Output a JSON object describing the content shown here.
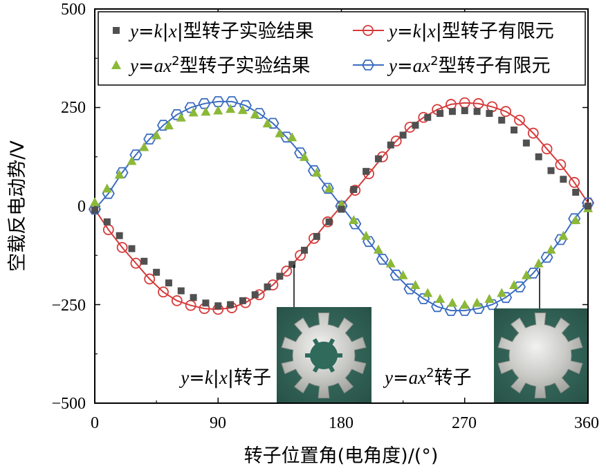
{
  "chart_data": {
    "type": "scatter",
    "ylabel": "空载反电动势/V",
    "xlabel": "转子位置角(电角度)/(°)",
    "xlim": [
      0,
      360
    ],
    "ylim": [
      -500,
      500
    ],
    "xticks": [
      "0",
      "90",
      "180",
      "270",
      "360"
    ],
    "yticks": [
      "500",
      "250",
      "0",
      "−250",
      "−500"
    ],
    "grid": false,
    "legend_position": "top",
    "series": [
      {
        "name": "y=k|x|型转子实验结果",
        "name_parts": [
          "y",
          "=",
          "k",
          "|",
          "x",
          "|型转子实验结果"
        ],
        "marker": "square",
        "color": "#505050",
        "x": [
          0,
          9,
          18,
          27,
          36,
          45,
          54,
          63,
          72,
          81,
          90,
          99,
          108,
          117,
          126,
          135,
          144,
          153,
          162,
          171,
          180,
          189,
          198,
          207,
          216,
          225,
          234,
          243,
          252,
          261,
          270,
          279,
          288,
          297,
          306,
          315,
          324,
          333,
          342,
          351,
          360
        ],
        "y": [
          -10,
          -40,
          -75,
          -108,
          -140,
          -168,
          -195,
          -215,
          -232,
          -246,
          -253,
          -250,
          -240,
          -225,
          -205,
          -178,
          -148,
          -112,
          -77,
          -40,
          -8,
          42,
          88,
          120,
          155,
          180,
          205,
          225,
          235,
          240,
          242,
          240,
          235,
          218,
          193,
          160,
          125,
          90,
          68,
          35,
          0
        ]
      },
      {
        "name": "y=k|x|型转子有限元",
        "name_parts": [
          "y",
          "=",
          "k",
          "|",
          "x",
          "|型转子有限元"
        ],
        "marker": "circle-open",
        "color": "#d63a3a",
        "x": [
          0,
          10,
          20,
          30,
          40,
          50,
          60,
          70,
          80,
          90,
          100,
          110,
          120,
          130,
          140,
          150,
          160,
          170,
          180,
          190,
          200,
          210,
          220,
          230,
          240,
          250,
          260,
          270,
          280,
          290,
          300,
          310,
          320,
          330,
          340,
          350,
          360
        ],
        "y": [
          -8,
          -60,
          -105,
          -145,
          -185,
          -218,
          -240,
          -252,
          -260,
          -262,
          -258,
          -245,
          -225,
          -200,
          -165,
          -125,
          -82,
          -40,
          0,
          40,
          82,
          125,
          165,
          200,
          225,
          245,
          258,
          262,
          260,
          252,
          240,
          218,
          185,
          145,
          105,
          60,
          8
        ]
      },
      {
        "name": "y=ax²型转子实验结果",
        "name_parts": [
          "y",
          "=",
          "ax",
          "2",
          "型转子实验结果"
        ],
        "marker": "triangle",
        "color": "#8cb838",
        "x": [
          0,
          9,
          18,
          27,
          36,
          45,
          54,
          63,
          72,
          81,
          90,
          99,
          108,
          117,
          126,
          135,
          144,
          153,
          162,
          171,
          180,
          189,
          198,
          207,
          216,
          225,
          234,
          243,
          252,
          261,
          270,
          279,
          288,
          297,
          306,
          315,
          324,
          333,
          342,
          351,
          360
        ],
        "y": [
          10,
          45,
          80,
          115,
          150,
          180,
          205,
          225,
          238,
          240,
          243,
          247,
          244,
          233,
          210,
          185,
          175,
          125,
          85,
          45,
          5,
          -35,
          -75,
          -110,
          -145,
          -175,
          -200,
          -220,
          -235,
          -245,
          -250,
          -245,
          -235,
          -220,
          -200,
          -175,
          -145,
          -110,
          -75,
          -35,
          -5
        ]
      },
      {
        "name": "y=ax²型转子有限元",
        "name_parts": [
          "y",
          "=",
          "ax",
          "2",
          "型转子有限元"
        ],
        "marker": "hexagon-open",
        "color": "#3a6cc0",
        "x": [
          0,
          10,
          20,
          30,
          40,
          50,
          60,
          70,
          80,
          90,
          100,
          110,
          120,
          130,
          140,
          150,
          160,
          170,
          180,
          190,
          200,
          210,
          220,
          230,
          240,
          250,
          260,
          270,
          280,
          290,
          300,
          310,
          320,
          330,
          340,
          350,
          360
        ],
        "y": [
          -8,
          32,
          85,
          130,
          170,
          205,
          232,
          250,
          260,
          265,
          265,
          255,
          235,
          210,
          175,
          135,
          90,
          45,
          0,
          -45,
          -90,
          -135,
          -175,
          -210,
          -235,
          -255,
          -265,
          -265,
          -260,
          -250,
          -232,
          -205,
          -170,
          -130,
          -85,
          -32,
          8
        ]
      }
    ],
    "insets": [
      {
        "label": "y=k|x|转子",
        "label_parts": [
          "y",
          "=",
          "k",
          "|",
          "x",
          "|转子"
        ],
        "photo": "gear-photo-rotor-kx",
        "callout_x": 145,
        "callout_y": -150
      },
      {
        "label": "y=ax²转子",
        "label_parts": [
          "y",
          "=",
          "ax",
          "2",
          "转子"
        ],
        "photo": "gear-photo-rotor-ax2",
        "callout_x": 325,
        "callout_y": -160
      }
    ]
  }
}
